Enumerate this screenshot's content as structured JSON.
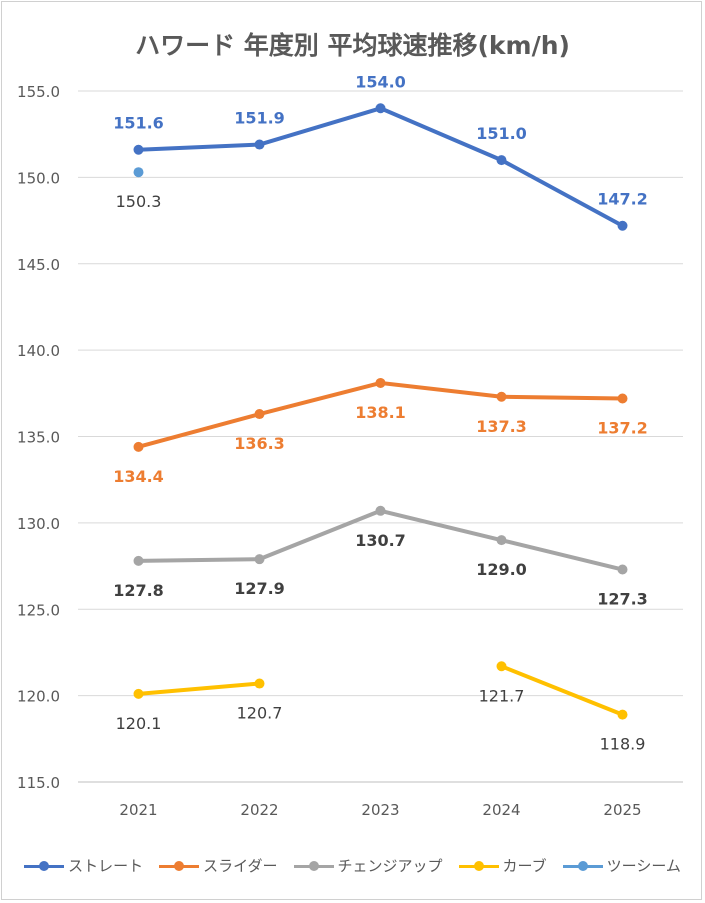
{
  "chart_data": {
    "type": "line",
    "title": "ハワード 年度別 平均球速推移(km/h)",
    "categories": [
      "2021",
      "2022",
      "2023",
      "2024",
      "2025"
    ],
    "ylim": [
      115,
      155
    ],
    "yticks": [
      "115.0",
      "120.0",
      "125.0",
      "130.0",
      "135.0",
      "140.0",
      "145.0",
      "150.0",
      "155.0"
    ],
    "grid": true,
    "legend_position": "bottom",
    "series": [
      {
        "name": "ストレート",
        "color": "#4472C4",
        "label_color": "#4472C4",
        "label_pos": "above",
        "label_bold": true,
        "values": [
          151.6,
          151.9,
          154.0,
          151.0,
          147.2
        ],
        "labels": [
          "151.6",
          "151.9",
          "154.0",
          "151.0",
          "147.2"
        ]
      },
      {
        "name": "スライダー",
        "color": "#ED7D31",
        "label_color": "#ED7D31",
        "label_pos": "below",
        "label_bold": true,
        "values": [
          134.4,
          136.3,
          138.1,
          137.3,
          137.2
        ],
        "labels": [
          "134.4",
          "136.3",
          "138.1",
          "137.3",
          "137.2"
        ]
      },
      {
        "name": "チェンジアップ",
        "color": "#A5A5A5",
        "label_color": "#404040",
        "label_pos": "below",
        "label_bold": true,
        "values": [
          127.8,
          127.9,
          130.7,
          129.0,
          127.3
        ],
        "labels": [
          "127.8",
          "127.9",
          "130.7",
          "129.0",
          "127.3"
        ]
      },
      {
        "name": "カーブ",
        "color": "#FFC000",
        "label_color": "#404040",
        "label_pos": "below",
        "label_bold": false,
        "values": [
          120.1,
          120.7,
          null,
          121.7,
          118.9
        ],
        "labels": [
          "120.1",
          "120.7",
          "",
          "121.7",
          "118.9"
        ]
      },
      {
        "name": "ツーシーム",
        "color": "#5B9BD5",
        "label_color": "#404040",
        "label_pos": "below",
        "label_bold": false,
        "values": [
          150.3,
          null,
          null,
          null,
          null
        ],
        "labels": [
          "150.3",
          "",
          "",
          "",
          ""
        ]
      }
    ]
  }
}
